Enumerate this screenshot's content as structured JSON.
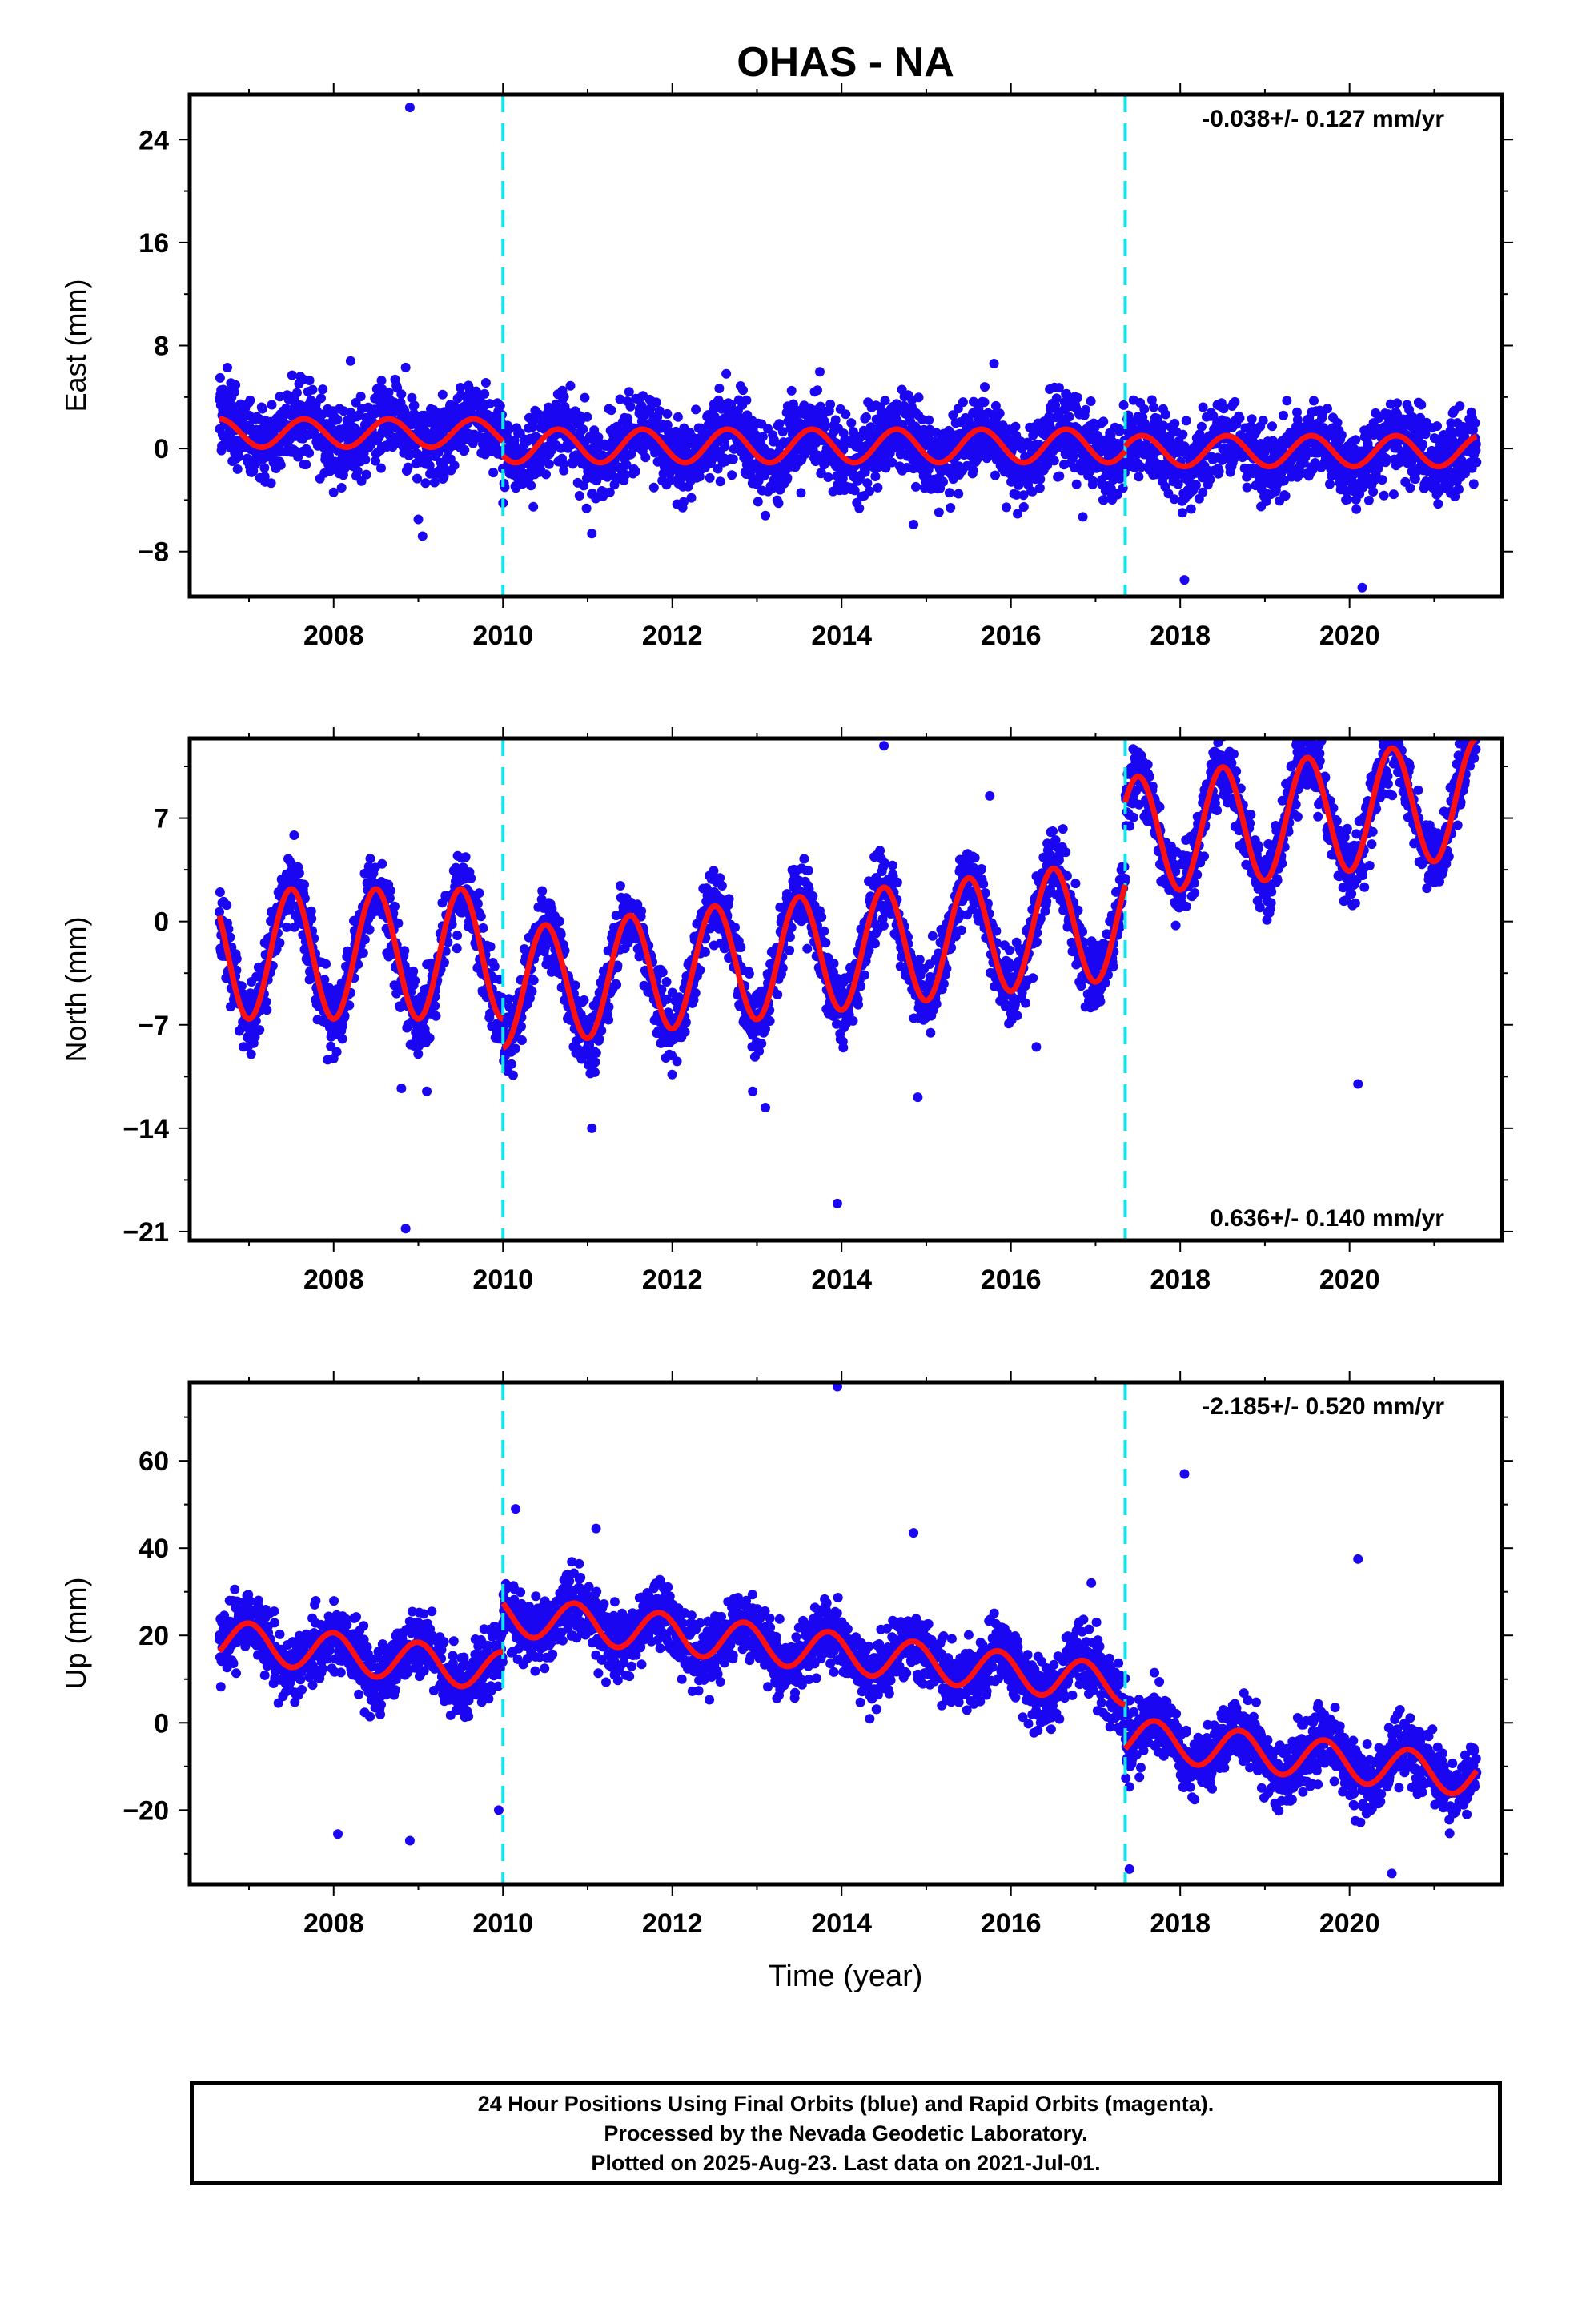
{
  "title": "OHAS - NA",
  "xlabel": "Time (year)",
  "footer": {
    "lines": [
      "24 Hour Positions Using Final Orbits (blue) and Rapid Orbits (magenta).",
      "Processed by the Nevada Geodetic Laboratory.",
      "Plotted on 2025-Aug-23. Last data on 2021-Jul-01."
    ]
  },
  "colors": {
    "points": "#1a06f0",
    "fit": "#ff1010",
    "breaks": "#19e3ea",
    "axes": "#000000"
  },
  "chart_data": [
    {
      "type": "scatter",
      "component": "east",
      "ylabel": "East (mm)",
      "rate_text": "-0.038+/- 0.127 mm/yr",
      "rate_position": "top-right",
      "xlim": [
        2006.3,
        2021.8
      ],
      "ylim": [
        -11.5,
        27.5
      ],
      "xticks": [
        2008,
        2010,
        2012,
        2014,
        2016,
        2018,
        2020
      ],
      "yticks": [
        -8,
        0,
        8,
        16,
        24
      ],
      "ytick_labels": [
        "−8",
        "0",
        "8",
        "16",
        "24"
      ],
      "breaks": [
        2010.0,
        2017.35
      ],
      "data_range": [
        2006.65,
        2021.5
      ],
      "fit": [
        {
          "from": 2006.65,
          "to": 2010.0,
          "offset": 1.2,
          "amplitude": 1.1,
          "peak": 0.65,
          "trend": 0.0
        },
        {
          "from": 2010.0,
          "to": 2017.35,
          "offset": 0.2,
          "amplitude": 1.3,
          "peak": 0.65,
          "trend": 0.0
        },
        {
          "from": 2017.35,
          "to": 2021.5,
          "offset": -0.2,
          "amplitude": 1.2,
          "peak": 0.55,
          "trend": 0.0
        }
      ],
      "scatter_sd": 1.5,
      "outliers": [
        {
          "x": 2008.9,
          "y": 26.5
        },
        {
          "x": 2008.85,
          "y": 6.3
        },
        {
          "x": 2008.2,
          "y": 6.8
        },
        {
          "x": 2009.05,
          "y": -6.8
        },
        {
          "x": 2009.0,
          "y": -5.5
        },
        {
          "x": 2011.05,
          "y": -6.6
        },
        {
          "x": 2013.1,
          "y": -5.2
        },
        {
          "x": 2014.85,
          "y": -5.9
        },
        {
          "x": 2015.8,
          "y": 6.6
        },
        {
          "x": 2016.85,
          "y": -5.3
        },
        {
          "x": 2018.05,
          "y": -10.2
        },
        {
          "x": 2020.15,
          "y": -10.8
        }
      ]
    },
    {
      "type": "scatter",
      "component": "north",
      "ylabel": "North (mm)",
      "rate_text": "0.636+/- 0.140 mm/yr",
      "rate_position": "bottom-right",
      "xlim": [
        2006.3,
        2021.8
      ],
      "ylim": [
        -21.6,
        12.4
      ],
      "xticks": [
        2008,
        2010,
        2012,
        2014,
        2016,
        2018,
        2020
      ],
      "yticks": [
        -21,
        -14,
        -7,
        0,
        7
      ],
      "ytick_labels": [
        "−21",
        "−14",
        "−7",
        "0",
        "7"
      ],
      "breaks": [
        2010.0,
        2017.35
      ],
      "data_range": [
        2006.65,
        2021.5
      ],
      "fit": [
        {
          "from": 2006.65,
          "to": 2010.0,
          "offset": -2.2,
          "amplitude": 4.4,
          "peak": 0.5,
          "trend": 0.0
        },
        {
          "from": 2010.0,
          "to": 2017.35,
          "offset": -2.0,
          "amplitude": 4.0,
          "peak": 0.5,
          "trend": 0.636
        },
        {
          "from": 2017.35,
          "to": 2021.5,
          "offset": 3.6,
          "amplitude": 4.0,
          "peak": 0.5,
          "trend": 0.636
        }
      ],
      "scatter_sd": 1.2,
      "outliers": [
        {
          "x": 2008.85,
          "y": -20.8
        },
        {
          "x": 2008.8,
          "y": -11.3
        },
        {
          "x": 2009.1,
          "y": -11.5
        },
        {
          "x": 2011.05,
          "y": -14.0
        },
        {
          "x": 2012.95,
          "y": -11.5
        },
        {
          "x": 2013.1,
          "y": -12.6
        },
        {
          "x": 2013.95,
          "y": -19.1
        },
        {
          "x": 2014.5,
          "y": 11.9
        },
        {
          "x": 2014.9,
          "y": -11.9
        },
        {
          "x": 2015.75,
          "y": 8.5
        },
        {
          "x": 2016.3,
          "y": -8.5
        },
        {
          "x": 2020.1,
          "y": -11.0
        }
      ]
    },
    {
      "type": "scatter",
      "component": "up",
      "ylabel": "Up (mm)",
      "rate_text": "-2.185+/- 0.520 mm/yr",
      "rate_position": "top-right",
      "xlim": [
        2006.3,
        2021.8
      ],
      "ylim": [
        -37,
        78
      ],
      "xticks": [
        2008,
        2010,
        2012,
        2014,
        2016,
        2018,
        2020
      ],
      "yticks": [
        -20,
        0,
        20,
        40,
        60
      ],
      "ytick_labels": [
        "−20",
        "0",
        "20",
        "40",
        "60"
      ],
      "breaks": [
        2010.0,
        2017.35
      ],
      "data_range": [
        2006.65,
        2021.5
      ],
      "fit": [
        {
          "from": 2006.65,
          "to": 2010.0,
          "offset": 3.0,
          "amplitude": 4.5,
          "peak": 0.0,
          "trend": -2.185
        },
        {
          "from": 2010.0,
          "to": 2017.35,
          "offset": 16.0,
          "amplitude": 4.5,
          "peak": 0.85,
          "trend": -2.185
        },
        {
          "from": 2017.35,
          "to": 2021.5,
          "offset": 4.0,
          "amplitude": 4.5,
          "peak": 0.7,
          "trend": -2.185
        }
      ],
      "scatter_sd": 3.8,
      "outliers": [
        {
          "x": 2013.95,
          "y": 77.0
        },
        {
          "x": 2018.05,
          "y": 57.0
        },
        {
          "x": 2014.85,
          "y": 43.5
        },
        {
          "x": 2010.15,
          "y": 49.0
        },
        {
          "x": 2011.1,
          "y": 44.5
        },
        {
          "x": 2020.1,
          "y": 37.5
        },
        {
          "x": 2016.95,
          "y": 32.0
        },
        {
          "x": 2009.95,
          "y": -20.0
        },
        {
          "x": 2008.05,
          "y": -25.5
        },
        {
          "x": 2008.9,
          "y": -27.0
        },
        {
          "x": 2017.4,
          "y": -33.5
        },
        {
          "x": 2020.5,
          "y": -34.5
        }
      ]
    }
  ]
}
